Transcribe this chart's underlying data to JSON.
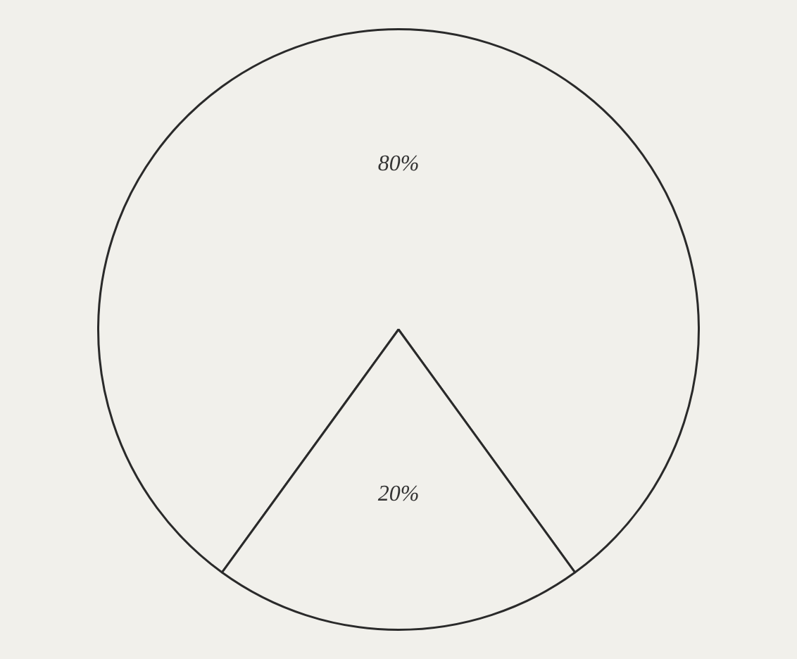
{
  "chart_data": {
    "type": "pie",
    "categories": [
      null,
      null
    ],
    "values": [
      80,
      20
    ],
    "colors": [
      "#f1f0eb",
      "#f1f0eb"
    ],
    "value_labels": [
      "80%",
      "20%"
    ],
    "legend": false
  }
}
